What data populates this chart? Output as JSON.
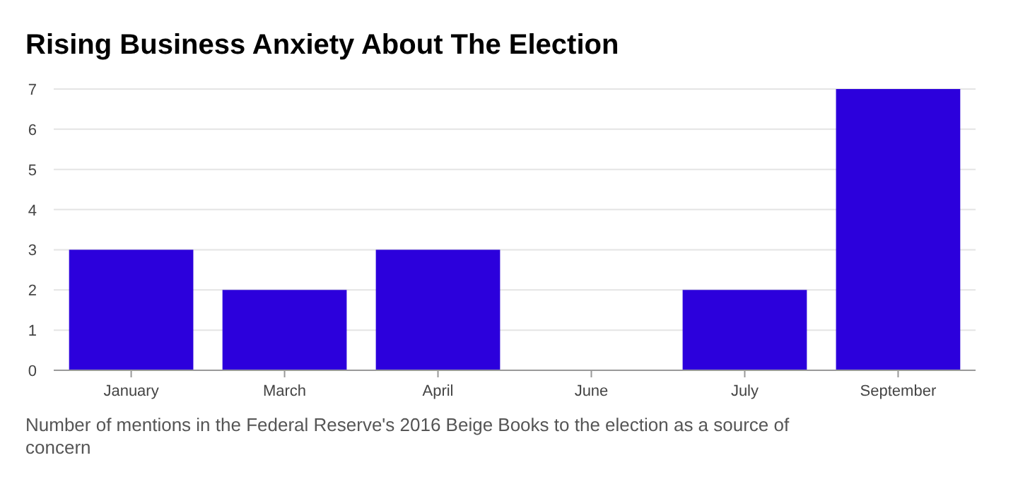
{
  "chart_data": {
    "type": "bar",
    "title": "Rising Business Anxiety About The Election",
    "categories": [
      "January",
      "March",
      "April",
      "June",
      "July",
      "September"
    ],
    "values": [
      3,
      2,
      3,
      0,
      2,
      7
    ],
    "color": "#2c00dc",
    "ylim": [
      0,
      7
    ],
    "yticks": [
      0,
      1,
      2,
      3,
      4,
      5,
      6,
      7
    ],
    "grid": "y",
    "annotations": [
      "Number of mentions in the Federal Reserve's 2016 Beige Books to the election as a source of concern"
    ]
  }
}
